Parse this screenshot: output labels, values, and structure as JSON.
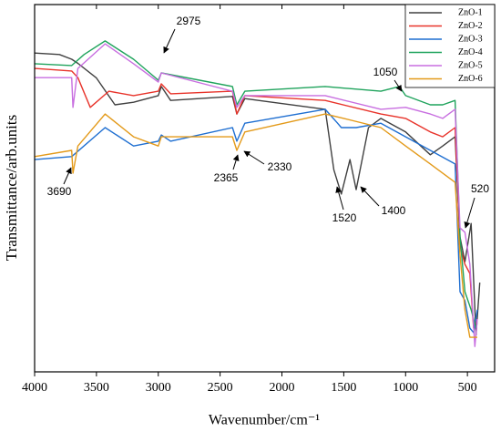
{
  "chart_data": {
    "type": "line",
    "x_label": "Wavenumber/cm⁻¹",
    "y_label": "Transmittance/arb.units",
    "xlim": [
      4000,
      280
    ],
    "ylim": [
      0,
      100
    ],
    "xticks": [
      4000,
      3500,
      3000,
      2500,
      2000,
      1500,
      1000,
      500
    ],
    "legend": "upper right",
    "series": [
      {
        "name": "ZnO-1",
        "color": "#404040",
        "x": [
          4000,
          3800,
          3700,
          3650,
          3500,
          3350,
          3200,
          3000,
          2975,
          2900,
          2400,
          2365,
          2300,
          1650,
          1580,
          1520,
          1450,
          1400,
          1300,
          1200,
          1000,
          800,
          700,
          600,
          560,
          520,
          470,
          430,
          400
        ],
        "values": [
          86.8,
          86.4,
          85.1,
          84,
          80,
          72.7,
          73.4,
          75.2,
          77.7,
          73.9,
          75,
          70.2,
          74.4,
          71.5,
          55,
          48.4,
          57.8,
          49.6,
          66.5,
          69,
          65.3,
          59.1,
          61.5,
          64,
          36.7,
          30,
          40.4,
          10,
          24.3
        ]
      },
      {
        "name": "ZnO-2",
        "color": "#e8332a",
        "x": [
          4000,
          3700,
          3650,
          3550,
          3400,
          3200,
          3000,
          2975,
          2900,
          2400,
          2365,
          2300,
          1650,
          1200,
          1000,
          800,
          700,
          600,
          560,
          520,
          480,
          450,
          420
        ],
        "values": [
          82.6,
          81.9,
          80.1,
          72,
          76.4,
          75.2,
          76.4,
          78.4,
          75.7,
          76.4,
          70.2,
          75.2,
          73.9,
          70.2,
          69,
          65.3,
          64,
          66.5,
          34.2,
          29.3,
          26.8,
          11.9,
          14.4
        ]
      },
      {
        "name": "ZnO-3",
        "color": "#1f6fd1",
        "x": [
          4000,
          3700,
          3430,
          3200,
          3000,
          2975,
          2900,
          2400,
          2365,
          2300,
          1650,
          1550,
          1520,
          1400,
          1200,
          1000,
          800,
          600,
          560,
          520,
          480,
          450,
          420
        ],
        "values": [
          57.8,
          58.6,
          66.5,
          61.5,
          62.8,
          64.5,
          62.8,
          66.5,
          62.8,
          67.7,
          71.5,
          67.7,
          66.5,
          66.5,
          67.7,
          64,
          60.3,
          56.6,
          21.8,
          19.4,
          11.9,
          10.7,
          16.9
        ]
      },
      {
        "name": "ZnO-4",
        "color": "#1fa35c",
        "x": [
          4000,
          3700,
          3600,
          3430,
          3200,
          3000,
          2975,
          2400,
          2365,
          2300,
          1650,
          1200,
          1050,
          1000,
          800,
          700,
          600,
          560,
          520,
          470,
          430
        ],
        "values": [
          83.9,
          83.4,
          86.4,
          90.1,
          85.1,
          79.4,
          81.4,
          77.7,
          72.7,
          76.4,
          77.7,
          76.4,
          77.7,
          75.2,
          72.7,
          72.7,
          73.9,
          36.7,
          21.8,
          16.9,
          11.9
        ]
      },
      {
        "name": "ZnO-5",
        "color": "#c86ee0",
        "x": [
          4000,
          3700,
          3690,
          3650,
          3430,
          3200,
          3000,
          2975,
          2400,
          2365,
          2300,
          1650,
          1200,
          1000,
          800,
          700,
          600,
          560,
          520,
          480,
          440,
          420
        ],
        "values": [
          80.1,
          80.1,
          72,
          82.6,
          89.3,
          83.9,
          78.9,
          81.4,
          76.4,
          72,
          75.2,
          75.2,
          71.5,
          72,
          70.2,
          69,
          71.5,
          39.2,
          38,
          29.3,
          6.9,
          14.4
        ]
      },
      {
        "name": "ZnO-6",
        "color": "#e39a1a",
        "x": [
          4000,
          3700,
          3690,
          3650,
          3430,
          3200,
          3000,
          2975,
          2400,
          2365,
          2300,
          1650,
          1500,
          1200,
          1000,
          800,
          600,
          560,
          520,
          480,
          420
        ],
        "values": [
          58.6,
          60.3,
          54.1,
          61.5,
          70.2,
          64,
          61.5,
          64,
          64,
          60.3,
          65.3,
          70.2,
          69,
          66.5,
          61.5,
          56.6,
          51.6,
          31.8,
          16.9,
          9.4,
          9.4
        ]
      }
    ],
    "annotations": [
      "2975",
      "1050",
      "2365",
      "2330",
      "3690",
      "1520",
      "1400",
      "520"
    ]
  }
}
